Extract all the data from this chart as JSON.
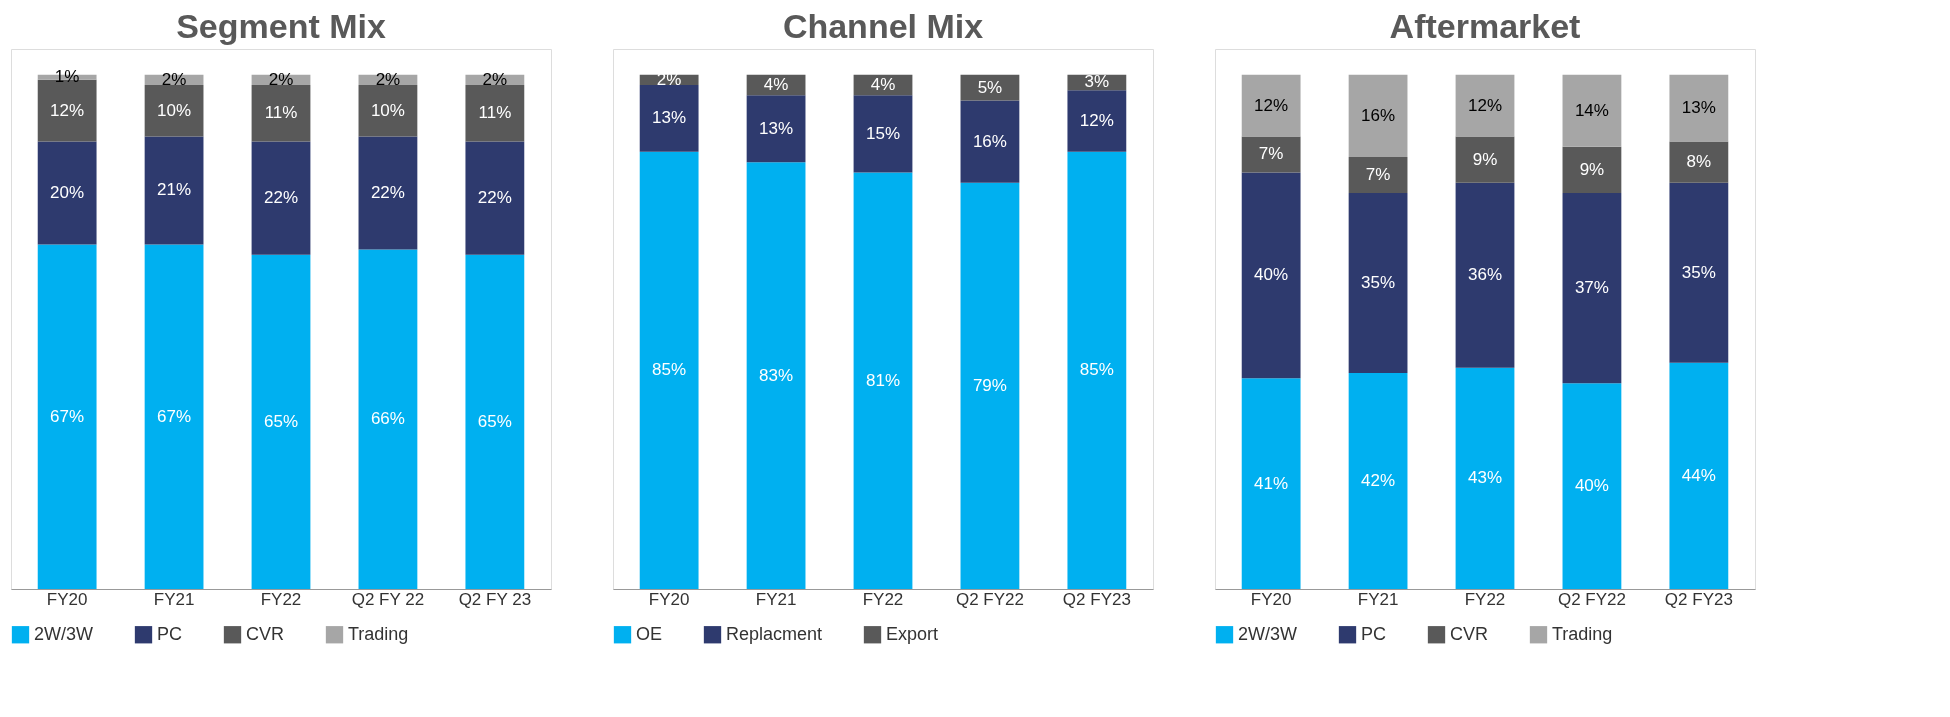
{
  "chart_data": [
    {
      "type": "bar",
      "title": "Segment Mix",
      "stacked": true,
      "legend": "bottom",
      "grid": false,
      "categories": [
        "FY20",
        "FY21",
        "FY22",
        "Q2 FY 22",
        "Q2 FY 23"
      ],
      "series": [
        {
          "name": "2W/3W",
          "color": "#00b0f0",
          "values": [
            67,
            67,
            65,
            66,
            65
          ],
          "value_labels": [
            "67%",
            "67%",
            "65%",
            "66%",
            "65%"
          ]
        },
        {
          "name": "PC",
          "color": "#2e3a6e",
          "values": [
            20,
            21,
            22,
            22,
            22
          ],
          "value_labels": [
            "20%",
            "21%",
            "22%",
            "22%",
            "22%"
          ]
        },
        {
          "name": "CVR",
          "color": "#595959",
          "values": [
            12,
            10,
            11,
            10,
            11
          ],
          "value_labels": [
            "12%",
            "10%",
            "11%",
            "10%",
            "11%"
          ]
        },
        {
          "name": "Trading",
          "color": "#a6a6a6",
          "values": [
            1,
            2,
            2,
            2,
            2
          ],
          "value_labels": [
            "1%",
            "2%",
            "2%",
            "2%",
            "2%"
          ]
        }
      ]
    },
    {
      "type": "bar",
      "title": "Channel Mix",
      "stacked": true,
      "legend": "bottom",
      "grid": false,
      "categories": [
        "FY20",
        "FY21",
        "FY22",
        "Q2 FY22",
        "Q2 FY23"
      ],
      "series": [
        {
          "name": "OE",
          "color": "#00b0f0",
          "values": [
            85,
            83,
            81,
            79,
            85
          ],
          "value_labels": [
            "85%",
            "83%",
            "81%",
            "79%",
            "85%"
          ]
        },
        {
          "name": "Replacment",
          "color": "#2e3a6e",
          "values": [
            13,
            13,
            15,
            16,
            12
          ],
          "value_labels": [
            "13%",
            "13%",
            "15%",
            "16%",
            "12%"
          ]
        },
        {
          "name": "Export",
          "color": "#595959",
          "values": [
            2,
            4,
            4,
            5,
            3
          ],
          "value_labels": [
            "2%",
            "4%",
            "4%",
            "5%",
            "3%"
          ]
        }
      ]
    },
    {
      "type": "bar",
      "title": "Aftermarket",
      "stacked": true,
      "legend": "bottom",
      "grid": false,
      "categories": [
        "FY20",
        "FY21",
        "FY22",
        "Q2 FY22",
        "Q2 FY23"
      ],
      "series": [
        {
          "name": "2W/3W",
          "color": "#00b0f0",
          "values": [
            41,
            42,
            43,
            40,
            44
          ],
          "value_labels": [
            "41%",
            "42%",
            "43%",
            "40%",
            "44%"
          ]
        },
        {
          "name": "PC",
          "color": "#2e3a6e",
          "values": [
            40,
            35,
            36,
            37,
            35
          ],
          "value_labels": [
            "40%",
            "35%",
            "36%",
            "37%",
            "35%"
          ]
        },
        {
          "name": "CVR",
          "color": "#595959",
          "values": [
            7,
            7,
            9,
            9,
            8
          ],
          "value_labels": [
            "7%",
            "7%",
            "9%",
            "9%",
            "8%"
          ]
        },
        {
          "name": "Trading",
          "color": "#a6a6a6",
          "values": [
            12,
            16,
            12,
            14,
            13
          ],
          "value_labels": [
            "12%",
            "16%",
            "12%",
            "14%",
            "13%"
          ]
        }
      ]
    }
  ]
}
